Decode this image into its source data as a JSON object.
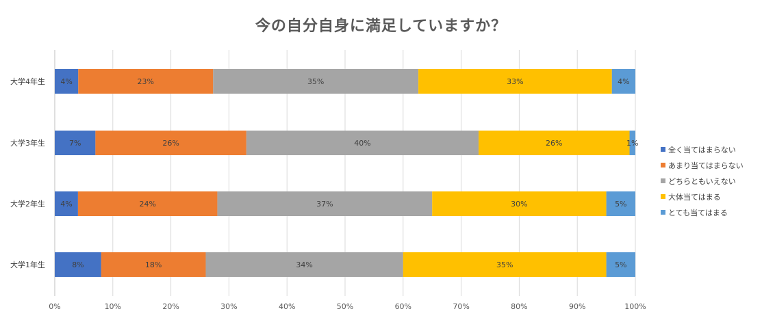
{
  "title": "今の自分自身に満足していますか？",
  "chart_data": {
    "type": "bar",
    "orientation": "horizontal",
    "stacked": "percent",
    "title": "今の自分自身に満足していますか？",
    "categories": [
      "大学4年生",
      "大学3年生",
      "大学2年生",
      "大学1年生"
    ],
    "series": [
      {
        "name": "全く当てはまらない",
        "color": "#4472C4",
        "values": [
          4,
          7,
          4,
          8
        ]
      },
      {
        "name": "あまり当てはまらない",
        "color": "#ED7D31",
        "values": [
          23,
          26,
          24,
          18
        ]
      },
      {
        "name": "どちらともいえない",
        "color": "#A5A5A5",
        "values": [
          35,
          40,
          37,
          34
        ]
      },
      {
        "name": "大体当てはまる",
        "color": "#FFC000",
        "values": [
          33,
          26,
          30,
          35
        ]
      },
      {
        "name": "とても当てはまる",
        "color": "#5B9BD5",
        "values": [
          4,
          1,
          5,
          5
        ]
      }
    ],
    "x_ticks": [
      "0%",
      "10%",
      "20%",
      "30%",
      "40%",
      "50%",
      "60%",
      "70%",
      "80%",
      "90%",
      "100%"
    ],
    "xlim": [
      0,
      100
    ],
    "data_label_suffix": "%",
    "grid": "vertical",
    "legend_position": "right"
  }
}
